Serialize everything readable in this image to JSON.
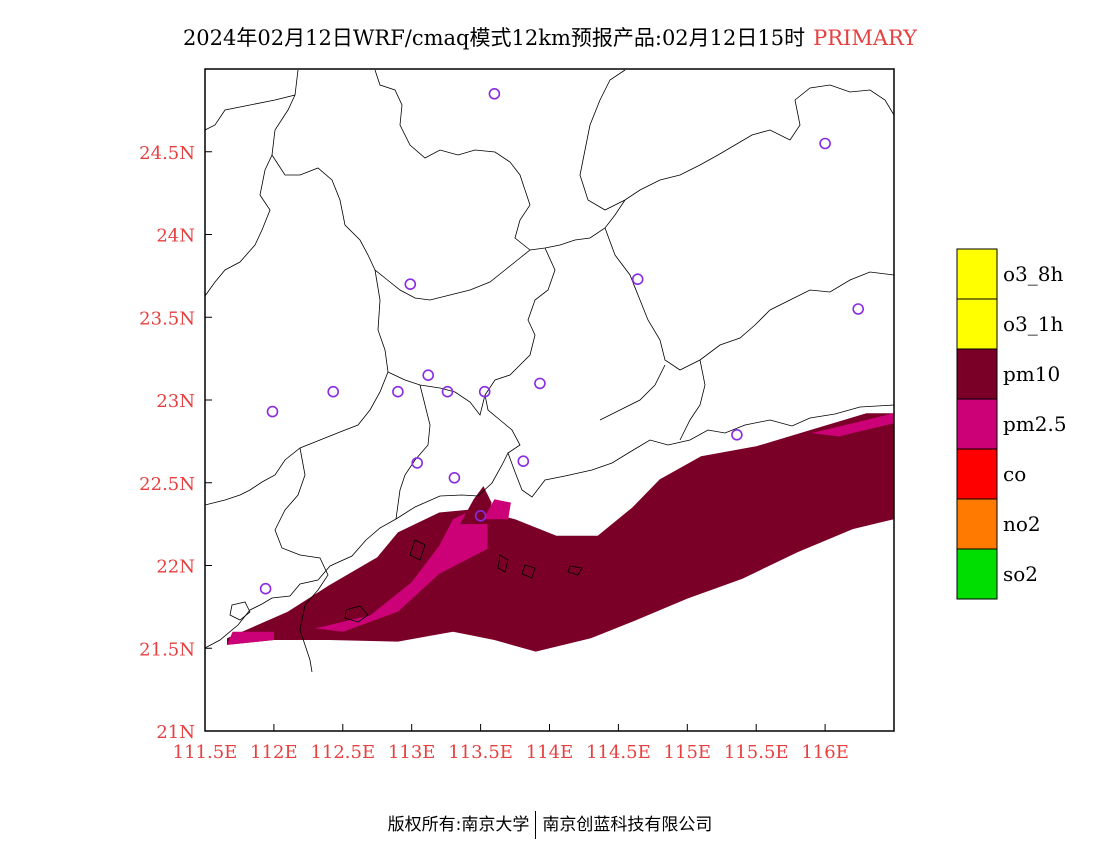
{
  "title": {
    "main": "2024年02月12日WRF/cmaq模式12km预报产品:02月12日15时",
    "tag": "PRIMARY",
    "tag_color": "#e64040"
  },
  "footer": {
    "left": "版权所有:南京大学",
    "right": "南京创蓝科技有限公司"
  },
  "chart_data": {
    "type": "heatmap",
    "title": "2024年02月12日WRF/cmaq模式12km预报产品:02月12日15时",
    "xlim": [
      111.5,
      116.5
    ],
    "ylim": [
      21.0,
      25.0
    ],
    "x_ticks": [
      111.5,
      112.0,
      112.5,
      113.0,
      113.5,
      114.0,
      114.5,
      115.0,
      115.5,
      116.0
    ],
    "x_tick_labels": [
      "111.5E",
      "112E",
      "112.5E",
      "113E",
      "113.5E",
      "114E",
      "114.5E",
      "115E",
      "115.5E",
      "116E"
    ],
    "y_ticks": [
      21.0,
      21.5,
      22.0,
      22.5,
      23.0,
      23.5,
      24.0,
      24.5
    ],
    "y_tick_labels": [
      "21N",
      "21.5N",
      "22N",
      "22.5N",
      "23N",
      "23.5N",
      "24N",
      "24.5N"
    ],
    "tick_label_color": "#e64040",
    "categories": [
      {
        "label": "o3_8h",
        "color": "#ffff00"
      },
      {
        "label": "o3_1h",
        "color": "#ffff00"
      },
      {
        "label": "pm10",
        "color": "#7a0028"
      },
      {
        "label": "pm2.5",
        "color": "#cc0077"
      },
      {
        "label": "co",
        "color": "#ff0000"
      },
      {
        "label": "no2",
        "color": "#ff7a00"
      },
      {
        "label": "so2",
        "color": "#00dd00"
      }
    ],
    "stations": [
      [
        113.6,
        24.85
      ],
      [
        116.0,
        24.55
      ],
      [
        112.99,
        23.7
      ],
      [
        114.64,
        23.73
      ],
      [
        116.24,
        23.55
      ],
      [
        112.43,
        23.05
      ],
      [
        112.9,
        23.05
      ],
      [
        113.12,
        23.15
      ],
      [
        113.26,
        23.05
      ],
      [
        113.53,
        23.05
      ],
      [
        113.93,
        23.1
      ],
      [
        111.99,
        22.93
      ],
      [
        113.04,
        22.62
      ],
      [
        113.31,
        22.53
      ],
      [
        113.81,
        22.63
      ],
      [
        115.36,
        22.79
      ],
      [
        113.5,
        22.3
      ],
      [
        111.94,
        21.86
      ]
    ],
    "pollution_bands": [
      {
        "category": "pm10",
        "polygon": [
          [
            111.66,
            21.56
          ],
          [
            112.1,
            21.72
          ],
          [
            112.4,
            21.88
          ],
          [
            112.75,
            22.05
          ],
          [
            112.9,
            22.2
          ],
          [
            113.2,
            22.32
          ],
          [
            113.45,
            22.34
          ],
          [
            113.75,
            22.28
          ],
          [
            114.05,
            22.18
          ],
          [
            114.35,
            22.18
          ],
          [
            114.6,
            22.35
          ],
          [
            114.8,
            22.52
          ],
          [
            115.1,
            22.66
          ],
          [
            115.5,
            22.72
          ],
          [
            115.9,
            22.82
          ],
          [
            116.3,
            22.92
          ],
          [
            116.5,
            22.92
          ],
          [
            116.5,
            22.28
          ],
          [
            116.2,
            22.22
          ],
          [
            115.8,
            22.08
          ],
          [
            115.4,
            21.92
          ],
          [
            115.0,
            21.8
          ],
          [
            114.6,
            21.66
          ],
          [
            114.3,
            21.56
          ],
          [
            113.9,
            21.48
          ],
          [
            113.6,
            21.55
          ],
          [
            113.3,
            21.6
          ],
          [
            112.9,
            21.54
          ],
          [
            112.4,
            21.55
          ],
          [
            112.0,
            21.55
          ],
          [
            111.66,
            21.52
          ]
        ]
      },
      {
        "category": "pm2.5",
        "polygon": [
          [
            112.3,
            21.62
          ],
          [
            112.7,
            21.7
          ],
          [
            113.0,
            21.9
          ],
          [
            113.2,
            22.12
          ],
          [
            113.3,
            22.28
          ],
          [
            113.45,
            22.34
          ],
          [
            113.55,
            22.25
          ],
          [
            113.55,
            22.1
          ],
          [
            113.2,
            21.95
          ],
          [
            112.9,
            21.72
          ],
          [
            112.5,
            21.6
          ]
        ]
      },
      {
        "category": "pm2.5",
        "polygon": [
          [
            115.9,
            22.8
          ],
          [
            116.2,
            22.86
          ],
          [
            116.5,
            22.92
          ],
          [
            116.5,
            22.86
          ],
          [
            116.1,
            22.78
          ]
        ]
      },
      {
        "category": "pm10",
        "polygon": [
          [
            113.35,
            22.25
          ],
          [
            113.45,
            22.4
          ],
          [
            113.52,
            22.48
          ],
          [
            113.58,
            22.38
          ],
          [
            113.55,
            22.25
          ]
        ]
      },
      {
        "category": "pm2.5",
        "polygon": [
          [
            113.52,
            22.28
          ],
          [
            113.6,
            22.4
          ],
          [
            113.72,
            22.38
          ],
          [
            113.7,
            22.28
          ]
        ]
      },
      {
        "category": "pm2.5",
        "polygon": [
          [
            111.66,
            21.52
          ],
          [
            112.0,
            21.55
          ],
          [
            112.0,
            21.6
          ],
          [
            111.7,
            21.6
          ]
        ]
      }
    ],
    "legend_position": "right"
  }
}
